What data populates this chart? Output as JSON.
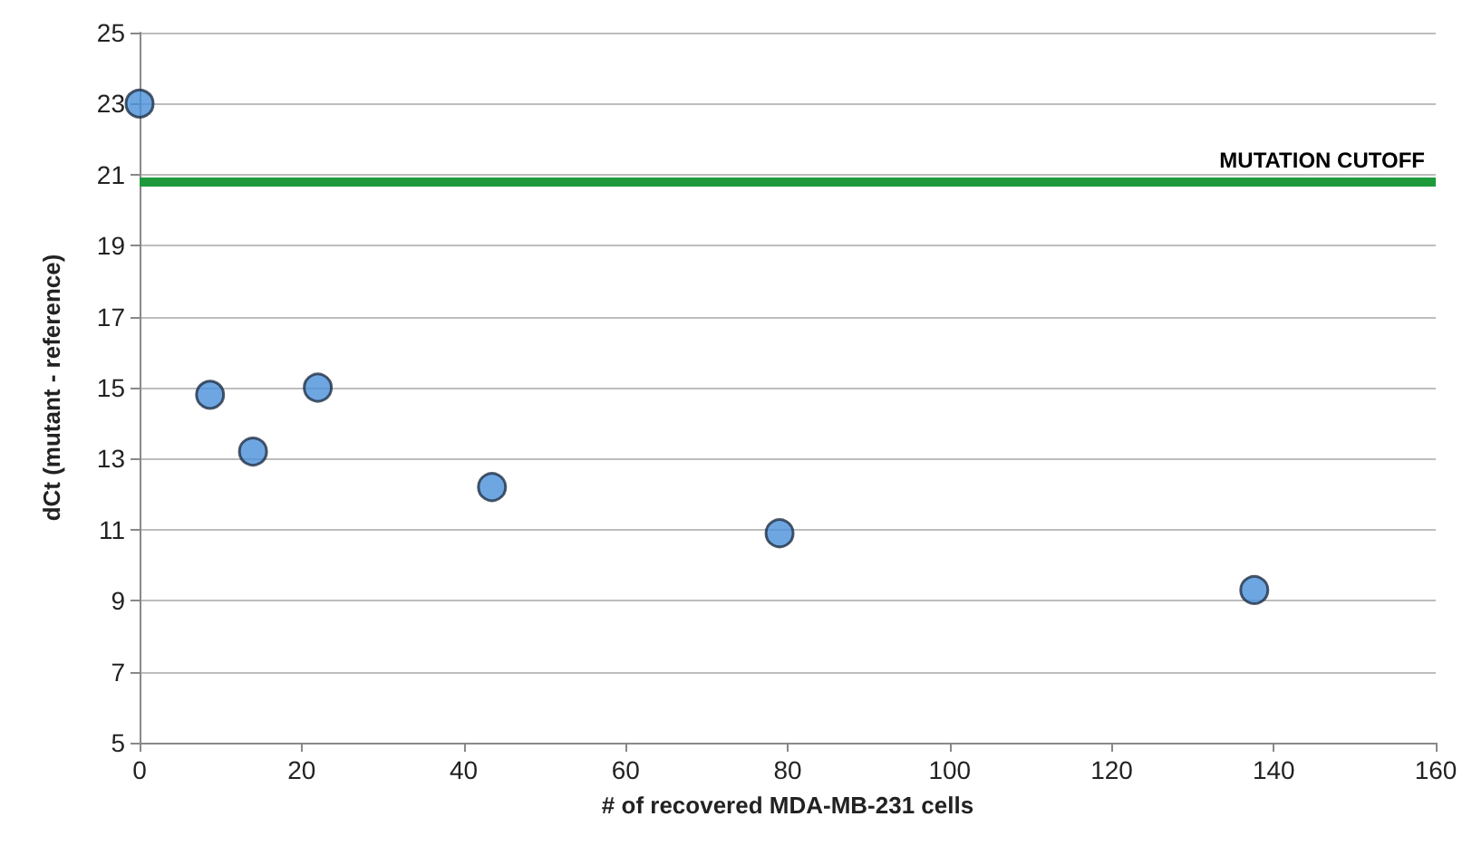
{
  "chart_data": {
    "type": "scatter",
    "xlabel": "# of recovered MDA-MB-231 cells",
    "ylabel": "dCt (mutant - reference)",
    "x": [
      0,
      8.7,
      14,
      22,
      43.5,
      79,
      137.6
    ],
    "series": [
      {
        "color": "#4a90d9",
        "values": [
          23,
          14.8,
          13.2,
          15,
          12.2,
          10.9,
          9.3
        ]
      }
    ],
    "xlim": [
      0,
      160
    ],
    "xticks": [
      0,
      20,
      40,
      60,
      80,
      100,
      120,
      140,
      160
    ],
    "ylim": [
      5,
      25
    ],
    "yticks": [
      5,
      7,
      9,
      11,
      13,
      15,
      17,
      19,
      21,
      23,
      25
    ],
    "grid": "y",
    "marker": "circle",
    "ref_lines": [
      {
        "axis": "y",
        "value": 20.8,
        "label": "MUTATION CUTOFF",
        "color": "#1e9a3c"
      }
    ]
  }
}
